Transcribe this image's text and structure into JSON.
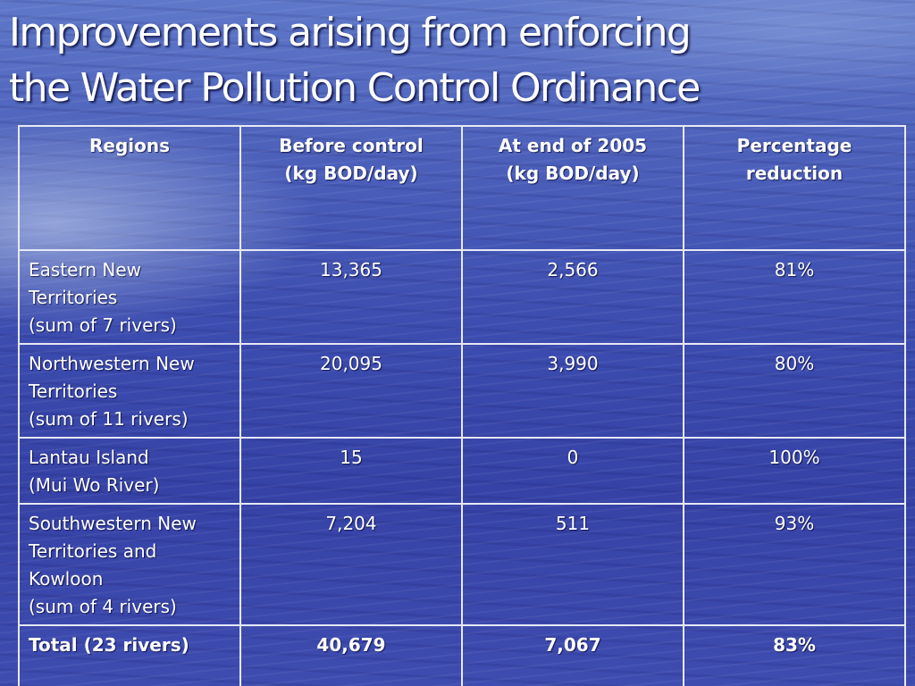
{
  "title": {
    "line1": "Improvements arising from enforcing",
    "line2": "the Water Pollution Control Ordinance"
  },
  "table": {
    "headers": [
      {
        "line1": "Regions",
        "line2": ""
      },
      {
        "line1": "Before control",
        "line2": "(kg BOD/day)"
      },
      {
        "line1": "At end of 2005",
        "line2": "(kg BOD/day)"
      },
      {
        "line1": "Percentage",
        "line2": "reduction"
      }
    ],
    "rows": [
      {
        "region": [
          "Eastern New",
          "Territories",
          "(sum of 7 rivers)"
        ],
        "before": "13,365",
        "after": "2,566",
        "reduction": "81%"
      },
      {
        "region": [
          "Northwestern New",
          "Territories",
          "(sum of 11 rivers)"
        ],
        "before": "20,095",
        "after": "3,990",
        "reduction": "80%"
      },
      {
        "region": [
          "Lantau Island",
          "(Mui Wo River)"
        ],
        "before": "15",
        "after": "0",
        "reduction": "100%"
      },
      {
        "region": [
          "Southwestern New",
          "Territories and",
          "Kowloon",
          "(sum of 4 rivers)"
        ],
        "before": "7,204",
        "after": "511",
        "reduction": "93%"
      }
    ],
    "total": {
      "region": "Total (23 rivers)",
      "before": "40,679",
      "after": "7,067",
      "reduction": "83%"
    }
  }
}
